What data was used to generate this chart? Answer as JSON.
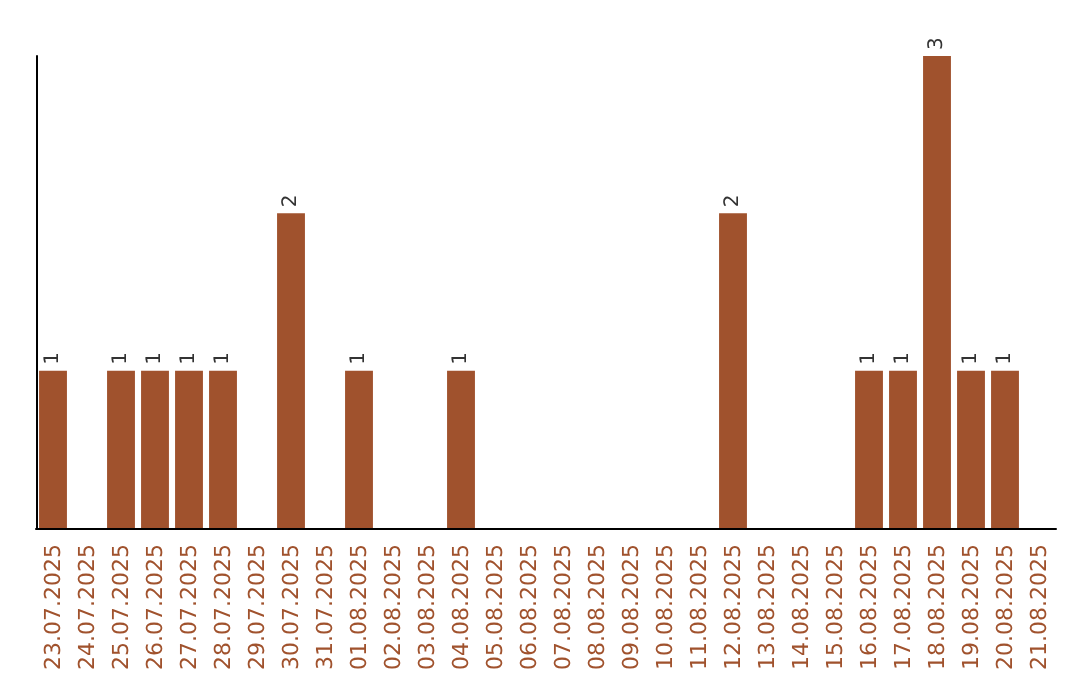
{
  "chart_data": {
    "type": "bar",
    "categories": [
      "23.07.2025",
      "24.07.2025",
      "25.07.2025",
      "26.07.2025",
      "27.07.2025",
      "28.07.2025",
      "29.07.2025",
      "30.07.2025",
      "31.07.2025",
      "01.08.2025",
      "02.08.2025",
      "03.08.2025",
      "04.08.2025",
      "05.08.2025",
      "06.08.2025",
      "07.08.2025",
      "08.08.2025",
      "09.08.2025",
      "10.08.2025",
      "11.08.2025",
      "12.08.2025",
      "13.08.2025",
      "14.08.2025",
      "15.08.2025",
      "16.08.2025",
      "17.08.2025",
      "18.08.2025",
      "19.08.2025",
      "20.08.2025",
      "21.08.2025"
    ],
    "values": [
      1,
      0,
      1,
      1,
      1,
      1,
      0,
      2,
      0,
      1,
      0,
      0,
      1,
      0,
      0,
      0,
      0,
      0,
      0,
      0,
      2,
      0,
      0,
      0,
      1,
      1,
      3,
      1,
      1,
      0
    ],
    "value_labels": [
      "1",
      null,
      "1",
      "1",
      "1",
      "1",
      null,
      "2",
      null,
      "1",
      null,
      null,
      "1",
      null,
      null,
      null,
      null,
      null,
      null,
      null,
      "2",
      null,
      null,
      null,
      "1",
      "1",
      "3",
      "1",
      "1",
      null
    ],
    "color": "#a0522d",
    "grid": false,
    "tick_labels": "x"
  }
}
